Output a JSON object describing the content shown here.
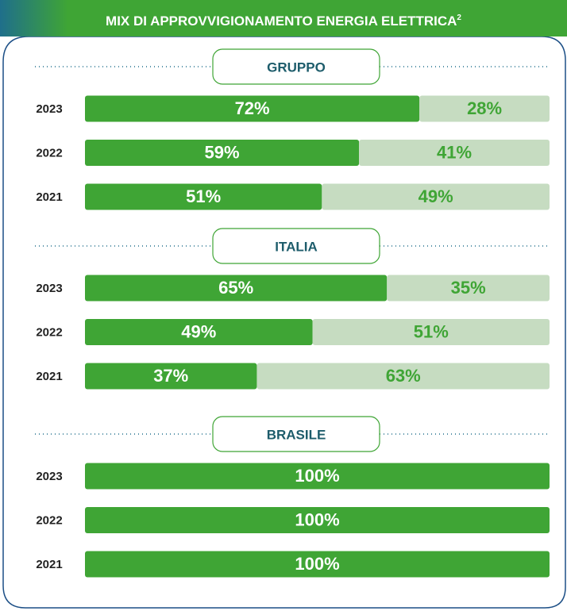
{
  "header": {
    "title": "MIX DI APPROVVIGIONAMENTO ENERGIA ELETTRICA",
    "superscript": "2"
  },
  "chart_data": [
    {
      "type": "bar",
      "orientation": "horizontal",
      "title": "GRUPPO",
      "categories": [
        "2023",
        "2022",
        "2021"
      ],
      "xlim": [
        0,
        100
      ],
      "series": [
        {
          "color": "#3fa535",
          "label_color": "#ffffff",
          "values": [
            72,
            59,
            51
          ],
          "value_labels": [
            "72%",
            "59%",
            "51%"
          ]
        },
        {
          "color": "#c6dcc1",
          "label_color": "#3fa535",
          "values": [
            28,
            41,
            49
          ],
          "value_labels": [
            "28%",
            "41%",
            "49%"
          ]
        }
      ]
    },
    {
      "type": "bar",
      "orientation": "horizontal",
      "title": "ITALIA",
      "categories": [
        "2023",
        "2022",
        "2021"
      ],
      "xlim": [
        0,
        100
      ],
      "series": [
        {
          "color": "#3fa535",
          "label_color": "#ffffff",
          "values": [
            65,
            49,
            37
          ],
          "value_labels": [
            "65%",
            "49%",
            "37%"
          ]
        },
        {
          "color": "#c6dcc1",
          "label_color": "#3fa535",
          "values": [
            35,
            51,
            63
          ],
          "value_labels": [
            "35%",
            "51%",
            "63%"
          ]
        }
      ]
    },
    {
      "type": "bar",
      "orientation": "horizontal",
      "title": "BRASILE",
      "categories": [
        "2023",
        "2022",
        "2021"
      ],
      "xlim": [
        0,
        100
      ],
      "series": [
        {
          "color": "#3fa535",
          "label_color": "#ffffff",
          "values": [
            100,
            100,
            100
          ],
          "value_labels": [
            "100%",
            "100%",
            "100%"
          ]
        }
      ]
    }
  ]
}
